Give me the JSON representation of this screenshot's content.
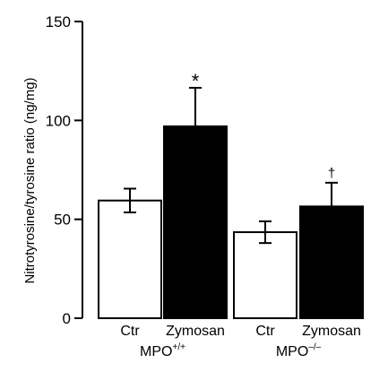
{
  "chart_data": {
    "type": "bar",
    "title": "",
    "xlabel": "",
    "ylabel": "Nitrotyrosine/tyrosine ratio (ng/mg)",
    "ylim": [
      0,
      150
    ],
    "yticks": [
      0,
      50,
      100,
      150
    ],
    "grid": false,
    "legend": "none",
    "categories": [
      "Ctr",
      "Zymosan",
      "Ctr",
      "Zymosan"
    ],
    "groups": [
      {
        "base": "MPO",
        "sup": "+/+",
        "categories": [
          0,
          1
        ]
      },
      {
        "base": "MPO",
        "sup": "–/–",
        "categories": [
          2,
          3
        ]
      }
    ],
    "values": [
      59.5,
      97,
      43.5,
      56.5
    ],
    "errors": [
      6,
      19.5,
      5.5,
      12
    ],
    "fills": [
      "#ffffff",
      "#000000",
      "#ffffff",
      "#000000"
    ],
    "annotations": [
      "",
      "*",
      "",
      "†"
    ]
  }
}
